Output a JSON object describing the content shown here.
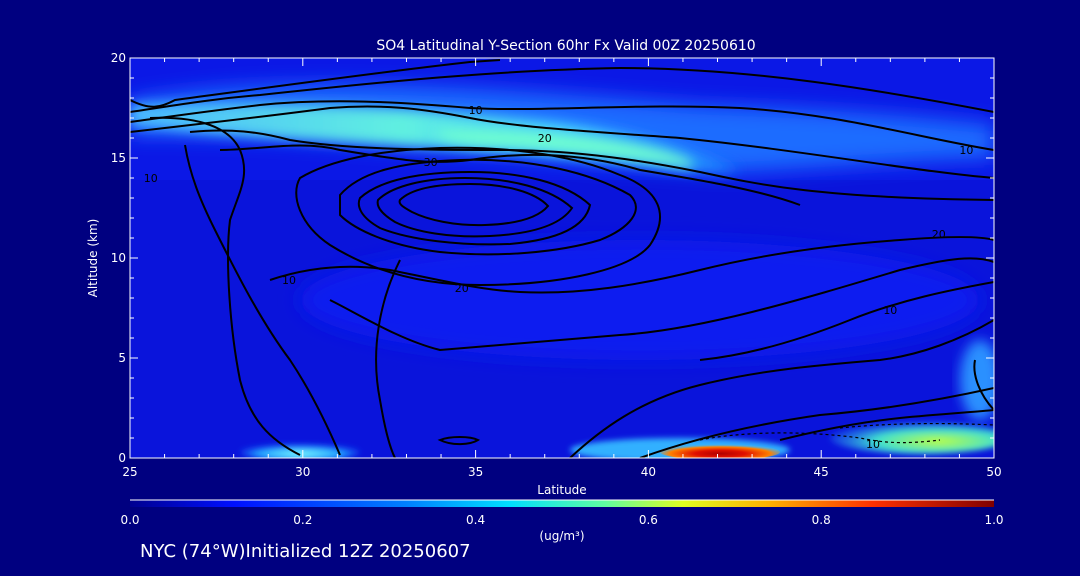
{
  "chart_data": {
    "type": "contour",
    "title": "SO4 Latitudinal Y-Section 60hr  Fx Valid 00Z 20250610",
    "xlabel": "Latitude",
    "ylabel": "Altitude (km)",
    "xlim": [
      25,
      50
    ],
    "ylim": [
      0,
      20
    ],
    "x_ticks": [
      "25",
      "30",
      "35",
      "40",
      "45",
      "50"
    ],
    "y_ticks": [
      "0",
      "5",
      "10",
      "15",
      "20"
    ],
    "colorbar": {
      "unit": "(ug/m³)",
      "range": [
        0.0,
        1.0
      ],
      "ticks": [
        "0.0",
        "0.2",
        "0.4",
        "0.6",
        "0.8",
        "1.0"
      ]
    },
    "shaded_features": [
      {
        "name": "stratospheric layer",
        "lat": [
          25,
          50
        ],
        "alt": [
          15,
          17
        ],
        "value": 0.4
      },
      {
        "name": "surface plume",
        "lat": [
          40,
          44
        ],
        "alt": [
          0,
          1
        ],
        "value": 1.0
      },
      {
        "name": "surface layer",
        "lat": [
          29,
          32
        ],
        "alt": [
          0,
          1
        ],
        "value": 0.3
      },
      {
        "name": "surface layer",
        "lat": [
          44,
          50
        ],
        "alt": [
          0,
          1.5
        ],
        "value": 0.5
      }
    ],
    "contour_labels": [
      {
        "text": "10",
        "lat": 35,
        "alt": 17.4
      },
      {
        "text": "20",
        "lat": 37,
        "alt": 16.0
      },
      {
        "text": "30",
        "lat": 33.7,
        "alt": 14.8
      },
      {
        "text": "10",
        "lat": 49.2,
        "alt": 15.4
      },
      {
        "text": "20",
        "lat": 48.4,
        "alt": 11.2
      },
      {
        "text": "10",
        "lat": 47,
        "alt": 7.4
      },
      {
        "text": "10",
        "lat": 25.6,
        "alt": 14.0
      },
      {
        "text": "10",
        "lat": 29.6,
        "alt": 8.9
      },
      {
        "text": "20",
        "lat": 34.6,
        "alt": 8.5
      },
      {
        "text": "10",
        "lat": 46.5,
        "alt": 0.7
      }
    ]
  },
  "footer": "NYC (74°W)Initialized 12Z 20250607",
  "colors": {
    "background": "#000080",
    "field_low": "#0000e0",
    "field_mid": "#00e0e0",
    "field_high": "#c00000"
  }
}
